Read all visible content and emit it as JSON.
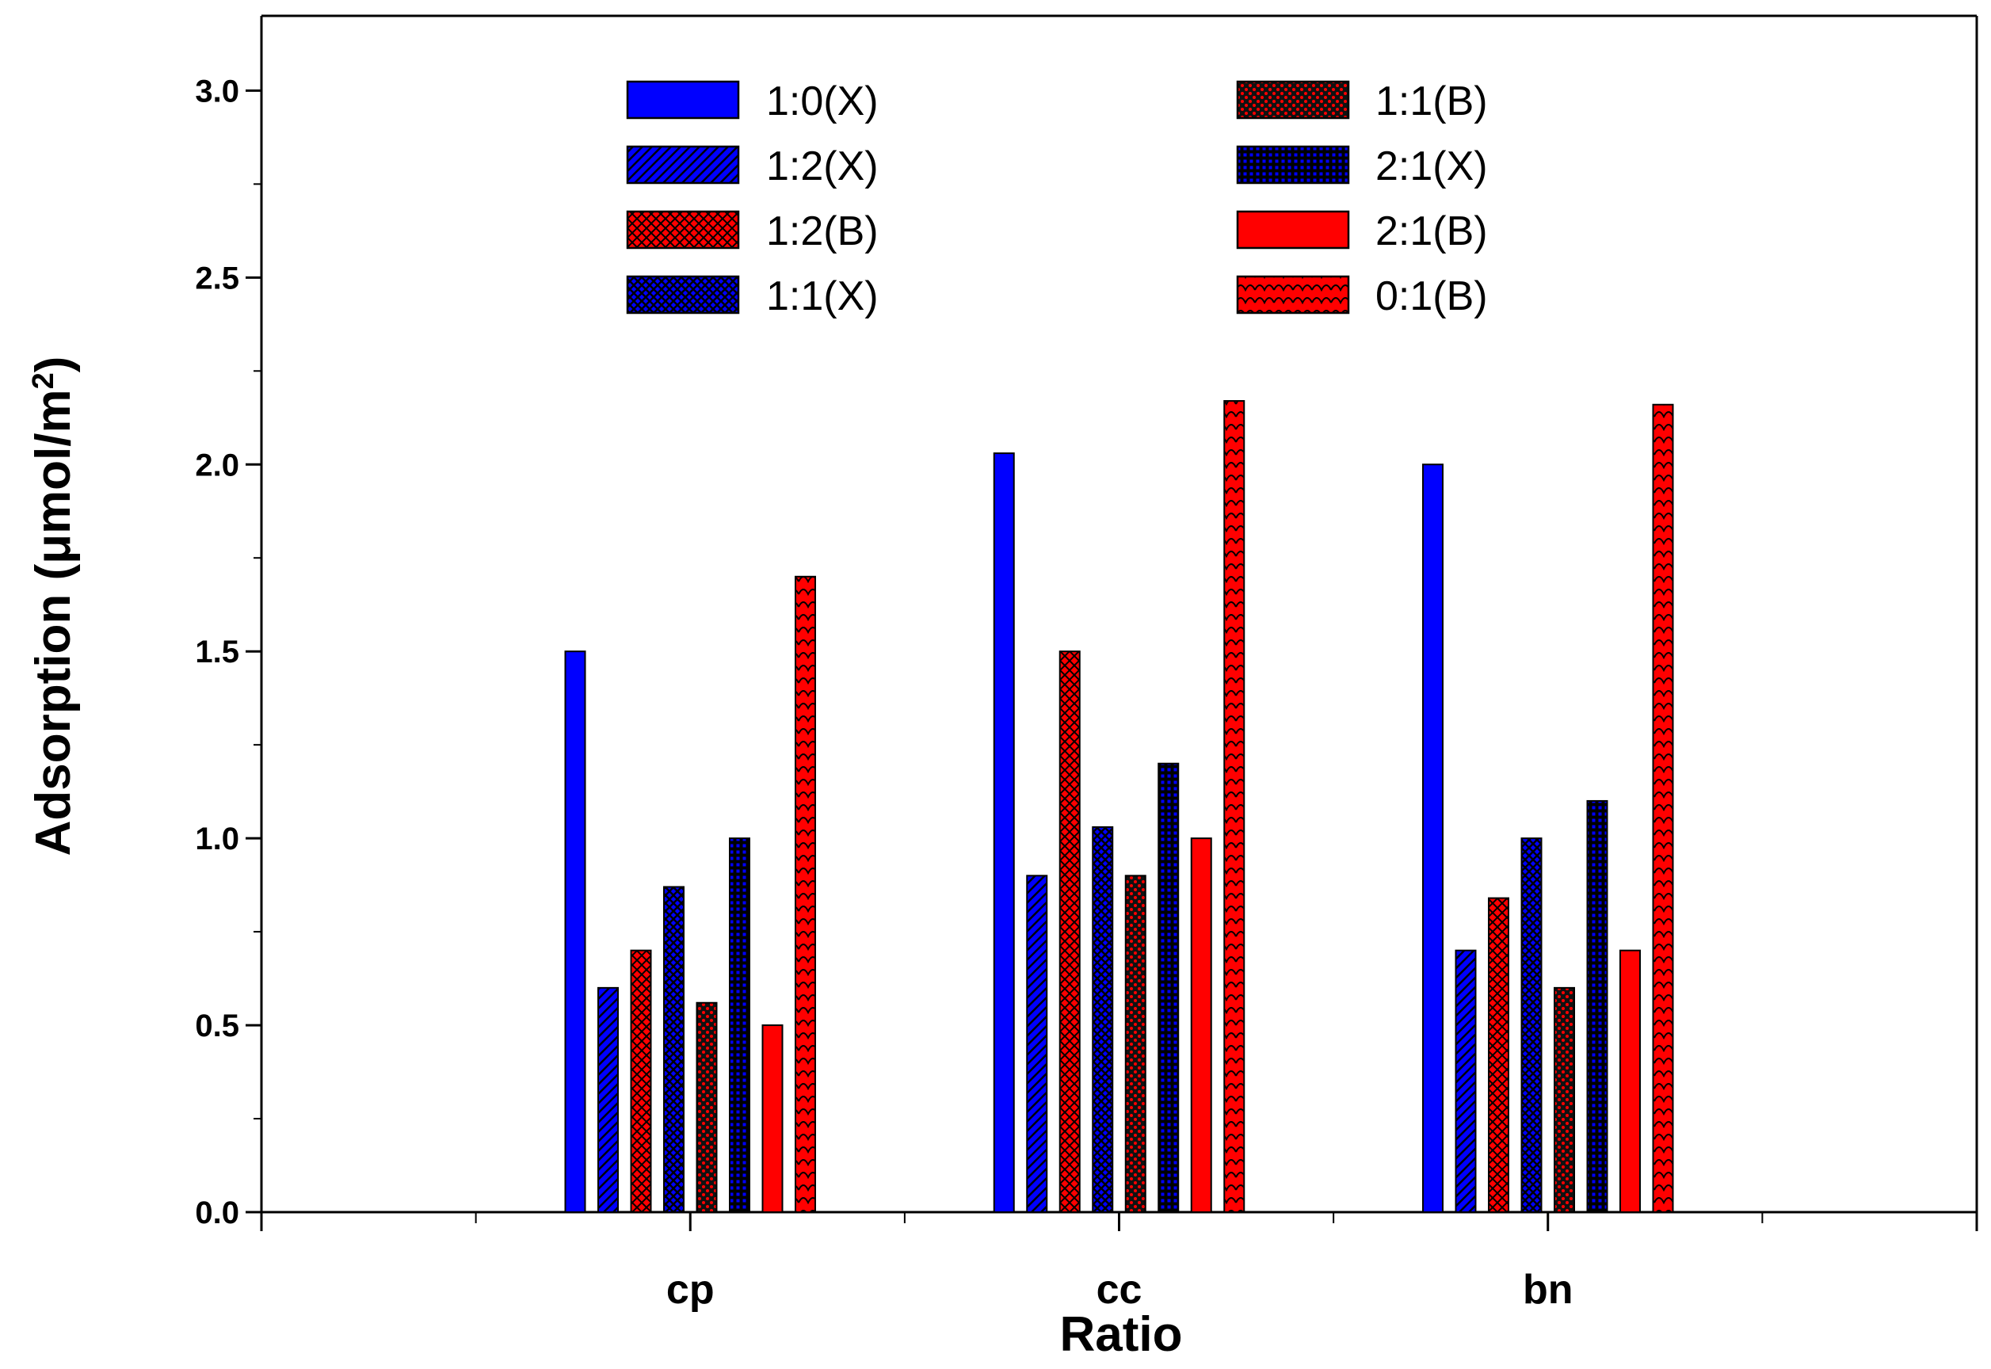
{
  "chart_data": {
    "type": "bar",
    "title": "",
    "xlabel": "Ratio",
    "ylabel": "Adsorption (μmol/m",
    "ylabel_superscript": "2",
    "ylabel_suffix": ")",
    "ylim": [
      0,
      3.2
    ],
    "yticks": [
      "0.0",
      "0.5",
      "1.0",
      "1.5",
      "2.0",
      "2.5",
      "3.0"
    ],
    "ytick_values": [
      0,
      0.5,
      1.0,
      1.5,
      2.0,
      2.5,
      3.0
    ],
    "categories": [
      "cp",
      "cc",
      "bn"
    ],
    "legend_position": "top",
    "series": [
      {
        "name": "1:0(X)",
        "values": [
          1.5,
          2.03,
          2.0
        ],
        "color": "#0000ff",
        "pattern": "solid"
      },
      {
        "name": "1:2(X)",
        "values": [
          0.6,
          0.9,
          0.7
        ],
        "color": "#0000ff",
        "pattern": "diagonal"
      },
      {
        "name": "1:2(B)",
        "values": [
          0.7,
          1.5,
          0.84
        ],
        "color": "#ff0000",
        "pattern": "crosshatch"
      },
      {
        "name": "1:1(X)",
        "values": [
          0.87,
          1.03,
          1.0
        ],
        "color": "#0000ff",
        "pattern": "crosshatch"
      },
      {
        "name": "1:1(B)",
        "values": [
          0.56,
          0.9,
          0.6
        ],
        "color": "#ff0000",
        "pattern": "dots"
      },
      {
        "name": "2:1(X)",
        "values": [
          1.0,
          1.2,
          1.1
        ],
        "color": "#0000ff",
        "pattern": "grid"
      },
      {
        "name": "2:1(B)",
        "values": [
          0.5,
          1.0,
          0.7
        ],
        "color": "#ff0000",
        "pattern": "solid"
      },
      {
        "name": "0:1(B)",
        "values": [
          1.7,
          2.17,
          2.16
        ],
        "color": "#ff0000",
        "pattern": "scallop"
      }
    ],
    "legend_order": [
      {
        "left": "1:0(X)",
        "right": "1:1(B)"
      },
      {
        "left": "1:2(X)",
        "right": "2:1(X)"
      },
      {
        "left": "1:2(B)",
        "right": "2:1(B)"
      },
      {
        "left": "1:1(X)",
        "right": "0:1(B)"
      }
    ]
  }
}
